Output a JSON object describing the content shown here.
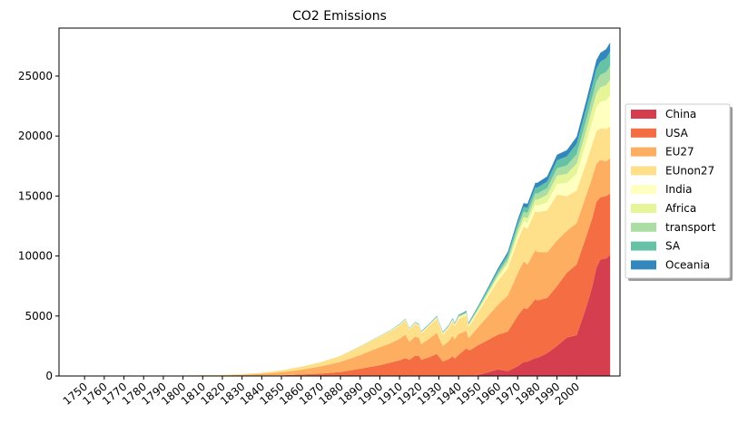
{
  "chart_data": {
    "type": "area",
    "stacked": true,
    "title": "CO2 Emissions",
    "xlabel": "",
    "ylabel": "",
    "xlim": [
      1737,
      2022
    ],
    "ylim": [
      0,
      29000
    ],
    "x_ticks": [
      1750,
      1760,
      1770,
      1780,
      1790,
      1800,
      1810,
      1820,
      1830,
      1840,
      1850,
      1860,
      1870,
      1880,
      1890,
      1900,
      1910,
      1920,
      1930,
      1940,
      1950,
      1960,
      1970,
      1980,
      1990,
      2000
    ],
    "x_tick_labels": [
      "1750",
      "1760",
      "1770",
      "1780",
      "1790",
      "1800",
      "1810",
      "1820",
      "1830",
      "1840",
      "1850",
      "1860",
      "1870",
      "1880",
      "1890",
      "1900",
      "1910",
      "1920",
      "1930",
      "1940",
      "1950",
      "1960",
      "1970",
      "1980",
      "1990",
      "2000"
    ],
    "y_ticks": [
      0,
      5000,
      10000,
      15000,
      20000,
      25000
    ],
    "y_tick_labels": [
      "0",
      "5000",
      "10000",
      "15000",
      "20000",
      "25000"
    ],
    "legend_position": "center-right, outside plot",
    "grid": false,
    "x": [
      1750,
      1760,
      1770,
      1780,
      1790,
      1800,
      1810,
      1820,
      1830,
      1840,
      1850,
      1860,
      1870,
      1880,
      1890,
      1900,
      1905,
      1910,
      1913,
      1915,
      1918,
      1920,
      1921,
      1925,
      1929,
      1930,
      1932,
      1935,
      1937,
      1938,
      1940,
      1944,
      1945,
      1946,
      1950,
      1955,
      1960,
      1965,
      1970,
      1973,
      1975,
      1979,
      1980,
      1985,
      1990,
      1995,
      2000,
      2005,
      2008,
      2010,
      2012,
      2015,
      2017
    ],
    "series": [
      {
        "name": "China",
        "color": "#d53e4f",
        "values": [
          0,
          0,
          0,
          0,
          0,
          0,
          0,
          0,
          0,
          0,
          0,
          0,
          0,
          0,
          0,
          0,
          0,
          0,
          0,
          0,
          0,
          0,
          0,
          0,
          0,
          0,
          0,
          0,
          0,
          0,
          10,
          10,
          10,
          10,
          80,
          300,
          550,
          400,
          800,
          1150,
          1200,
          1500,
          1500,
          1900,
          2500,
          3200,
          3400,
          5800,
          7500,
          9000,
          9700,
          9800,
          10100
        ]
      },
      {
        "name": "USA",
        "color": "#f46d43",
        "values": [
          0,
          0,
          0,
          0,
          0,
          1,
          2,
          4,
          10,
          25,
          60,
          120,
          200,
          330,
          600,
          900,
          1100,
          1300,
          1500,
          1350,
          1700,
          1650,
          1350,
          1550,
          1850,
          1600,
          1200,
          1400,
          1650,
          1450,
          1750,
          2300,
          2150,
          2150,
          2500,
          2700,
          2900,
          3300,
          4200,
          4500,
          4400,
          4900,
          4800,
          4600,
          5000,
          5400,
          5900,
          5900,
          5700,
          5500,
          5200,
          5200,
          5100
        ]
      },
      {
        "name": "EU27",
        "color": "#fdae61",
        "values": [
          3,
          5,
          8,
          12,
          16,
          20,
          35,
          50,
          80,
          150,
          250,
          400,
          600,
          850,
          1150,
          1500,
          1600,
          1800,
          1950,
          1500,
          1600,
          1500,
          1300,
          1550,
          1750,
          1600,
          1300,
          1500,
          1700,
          1600,
          1750,
          1450,
          1000,
          1150,
          1500,
          2000,
          2500,
          3000,
          3550,
          3900,
          3700,
          4100,
          4050,
          3800,
          3800,
          3500,
          3450,
          3450,
          3400,
          3200,
          3100,
          2900,
          2950
        ]
      },
      {
        "name": "EUnon27",
        "color": "#fee08b",
        "values": [
          2,
          4,
          6,
          10,
          14,
          18,
          25,
          40,
          60,
          100,
          160,
          250,
          350,
          500,
          700,
          900,
          1000,
          1100,
          1200,
          1000,
          1050,
          1000,
          900,
          1050,
          1200,
          1100,
          950,
          1100,
          1200,
          1100,
          1250,
          1300,
          900,
          1000,
          1250,
          1650,
          2000,
          2300,
          2750,
          2900,
          3000,
          3250,
          3300,
          3500,
          3800,
          2900,
          2700,
          2700,
          2750,
          2700,
          2650,
          2700,
          2650
        ]
      },
      {
        "name": "India",
        "color": "#ffffbf",
        "values": [
          0,
          0,
          0,
          0,
          0,
          0,
          0,
          0,
          0,
          0,
          0,
          0,
          0,
          5,
          10,
          20,
          30,
          40,
          50,
          50,
          50,
          50,
          50,
          60,
          70,
          70,
          70,
          80,
          90,
          90,
          100,
          110,
          110,
          110,
          120,
          160,
          220,
          290,
          360,
          420,
          450,
          510,
          540,
          680,
          900,
          1100,
          1400,
          1700,
          1900,
          2000,
          2200,
          2400,
          2600
        ]
      },
      {
        "name": "Africa",
        "color": "#e6f598",
        "values": [
          0,
          0,
          0,
          0,
          0,
          0,
          0,
          0,
          0,
          0,
          0,
          0,
          0,
          2,
          5,
          10,
          15,
          20,
          25,
          25,
          25,
          30,
          30,
          35,
          40,
          40,
          40,
          45,
          50,
          50,
          60,
          70,
          70,
          80,
          110,
          150,
          200,
          260,
          340,
          380,
          410,
          480,
          500,
          620,
          700,
          750,
          850,
          1000,
          1100,
          1150,
          1200,
          1250,
          1300
        ]
      },
      {
        "name": "transport",
        "color": "#abdda4",
        "values": [
          0,
          0,
          0,
          0,
          0,
          0,
          0,
          0,
          0,
          0,
          0,
          0,
          0,
          0,
          5,
          10,
          15,
          20,
          25,
          25,
          25,
          30,
          30,
          35,
          40,
          40,
          40,
          45,
          50,
          50,
          60,
          70,
          70,
          80,
          110,
          160,
          220,
          290,
          380,
          430,
          450,
          500,
          520,
          560,
          620,
          700,
          800,
          900,
          950,
          1000,
          1050,
          1100,
          1150
        ]
      },
      {
        "name": "SA",
        "color": "#66c2a5",
        "values": [
          0,
          0,
          0,
          0,
          0,
          0,
          0,
          0,
          0,
          0,
          0,
          0,
          0,
          2,
          5,
          10,
          15,
          20,
          25,
          25,
          25,
          30,
          30,
          35,
          40,
          40,
          40,
          45,
          50,
          50,
          60,
          70,
          70,
          80,
          110,
          160,
          220,
          290,
          350,
          400,
          410,
          480,
          500,
          550,
          650,
          750,
          850,
          950,
          1000,
          1050,
          1100,
          1150,
          1200
        ]
      },
      {
        "name": "Oceania",
        "color": "#3288bd",
        "values": [
          0,
          0,
          0,
          0,
          0,
          0,
          0,
          0,
          0,
          0,
          0,
          0,
          0,
          2,
          5,
          10,
          15,
          20,
          20,
          20,
          20,
          25,
          25,
          30,
          30,
          30,
          30,
          35,
          40,
          40,
          45,
          55,
          55,
          60,
          80,
          120,
          170,
          220,
          290,
          330,
          340,
          380,
          390,
          420,
          480,
          520,
          600,
          650,
          700,
          720,
          730,
          750,
          760
        ]
      }
    ]
  }
}
